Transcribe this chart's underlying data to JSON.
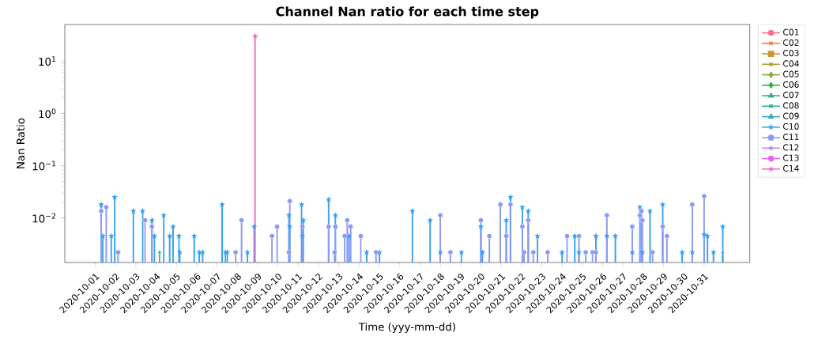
{
  "chart_data": {
    "type": "lollipop",
    "title": "Channel Nan ratio for each time step",
    "xlabel": "Time (yyy-mm-dd)",
    "ylabel": "Nan Ratio",
    "log": "y",
    "grid": false,
    "legend": "right",
    "xlim": [
      "2020-09-29T12:00",
      "2020-11-02T06:00"
    ],
    "xticks": [
      "2020-10-01",
      "2020-10-02",
      "2020-10-03",
      "2020-10-04",
      "2020-10-05",
      "2020-10-06",
      "2020-10-07",
      "2020-10-08",
      "2020-10-09",
      "2020-10-10",
      "2020-10-11",
      "2020-10-12",
      "2020-10-13",
      "2020-10-14",
      "2020-10-15",
      "2020-10-16",
      "2020-10-17",
      "2020-10-18",
      "2020-10-19",
      "2020-10-20",
      "2020-10-21",
      "2020-10-22",
      "2020-10-23",
      "2020-10-24",
      "2020-10-25",
      "2020-10-26",
      "2020-10-27",
      "2020-10-28",
      "2020-10-29",
      "2020-10-30",
      "2020-10-31"
    ],
    "ylim": [
      0.0014,
      50
    ],
    "yticks": [
      {
        "value": 0.01,
        "label": "10$^{−2}$"
      },
      {
        "value": 0.1,
        "label": "10$^{−1}$"
      },
      {
        "value": 1,
        "label": "10$^{0}$"
      },
      {
        "value": 10,
        "label": "10$^{1}$"
      }
    ],
    "series": [
      {
        "name": "C01",
        "color": "#f77189",
        "marker": "circle"
      },
      {
        "name": "C02",
        "color": "#ee7e39",
        "marker": "cross"
      },
      {
        "name": "C03",
        "color": "#cf9131",
        "marker": "square"
      },
      {
        "name": "C04",
        "color": "#b09a31",
        "marker": "cross"
      },
      {
        "name": "C05",
        "color": "#93a531",
        "marker": "diamond"
      },
      {
        "name": "C06",
        "color": "#33b04a",
        "marker": "diamond"
      },
      {
        "name": "C07",
        "color": "#36ad8b",
        "marker": "triangle"
      },
      {
        "name": "C08",
        "color": "#36aba0",
        "marker": "cross"
      },
      {
        "name": "C09",
        "color": "#38a9b6",
        "marker": "triangle",
        "x": [
          "2020-10-04T04:00",
          "2020-10-31T22:00"
        ],
        "values": [
          0.0022,
          0.0022
        ]
      },
      {
        "name": "C10",
        "color": "#3ba3ec",
        "marker": "star",
        "x": [
          "2020-10-01T07:00",
          "2020-10-01T09:00",
          "2020-10-01T19:00",
          "2020-10-01T23:00",
          "2020-10-02T21:00",
          "2020-10-03T08:00",
          "2020-10-03T19:00",
          "2020-10-03T22:00",
          "2020-10-04T09:00",
          "2020-10-04T16:00",
          "2020-10-04T20:00",
          "2020-10-05T03:00",
          "2020-10-05T04:00",
          "2020-10-05T21:00",
          "2020-10-06T03:00",
          "2020-10-06T07:00",
          "2020-10-07T06:00",
          "2020-10-07T10:00",
          "2020-10-07T12:00",
          "2020-10-08T12:00",
          "2020-10-08T20:00",
          "2020-10-10T13:00",
          "2020-10-10T14:00",
          "2020-10-10T15:00",
          "2020-10-11T04:00",
          "2020-10-11T05:00",
          "2020-10-11T06:00",
          "2020-10-12T12:00",
          "2020-10-12T20:00",
          "2020-10-13T12:00",
          "2020-10-14T09:00",
          "2020-10-15T00:00",
          "2020-10-16T15:00",
          "2020-10-17T12:00",
          "2020-10-18T00:00",
          "2020-10-19T01:00",
          "2020-10-20T00:00",
          "2020-10-20T02:00",
          "2020-10-21T06:00",
          "2020-10-21T11:00",
          "2020-10-22T01:00",
          "2020-10-22T08:00",
          "2020-10-22T19:00",
          "2020-10-24T00:00",
          "2020-10-24T15:00",
          "2020-10-24T20:00",
          "2020-10-25T16:00",
          "2020-10-26T05:00",
          "2020-10-26T15:00",
          "2020-10-27T11:00",
          "2020-10-27T20:00",
          "2020-10-27T23:00",
          "2020-10-28T08:00",
          "2020-10-28T23:00",
          "2020-10-29T22:00",
          "2020-10-30T10:00",
          "2020-10-31T00:00",
          "2020-10-31T04:00",
          "2020-10-31T11:00",
          "2020-10-31T22:00"
        ],
        "values": [
          0.018,
          0.0045,
          0.0045,
          0.025,
          0.0135,
          0.0135,
          0.009,
          0.0045,
          0.0112,
          0.0045,
          0.0068,
          0.0045,
          0.0022,
          0.0045,
          0.0022,
          0.0022,
          0.018,
          0.0022,
          0.0022,
          0.0022,
          0.0068,
          0.0112,
          0.0068,
          null,
          0.018,
          0.0045,
          0.009,
          0.0225,
          0.0112,
          0.0045,
          0.0022,
          0.0022,
          0.0135,
          0.009,
          0.0022,
          0.0022,
          0.0068,
          0.0022,
          0.009,
          0.025,
          0.016,
          0.0135,
          0.0045,
          0.0022,
          0.0045,
          0.0022,
          0.0045,
          0.0045,
          0.0045,
          0.0022,
          0.016,
          0.0022,
          0.0135,
          0.018,
          0.0022,
          0.0022,
          0.0048,
          0.0045,
          0.0022,
          0.0068
        ]
      },
      {
        "name": "C11",
        "color": "#8d9af5",
        "marker": "circle",
        "x": [
          "2020-10-01T07:00",
          "2020-10-01T13:00",
          "2020-10-02T03:00",
          "2020-10-03T11:00",
          "2020-10-03T19:00",
          "2020-10-07T22:00",
          "2020-10-08T05:00",
          "2020-10-09T17:00",
          "2020-10-09T23:00",
          "2020-10-10T13:00",
          "2020-10-10T14:00",
          "2020-10-11T05:00",
          "2020-10-12T12:00",
          "2020-10-12T19:00",
          "2020-10-12T20:00",
          "2020-10-13T07:00",
          "2020-10-13T10:00",
          "2020-10-13T14:00",
          "2020-10-14T02:00",
          "2020-10-14T20:00",
          "2020-10-18T00:00",
          "2020-10-18T12:00",
          "2020-10-20T00:00",
          "2020-10-20T10:00",
          "2020-10-20T23:00",
          "2020-10-21T06:00",
          "2020-10-21T11:00",
          "2020-10-22T01:00",
          "2020-10-22T03:00",
          "2020-10-22T08:00",
          "2020-10-22T14:00",
          "2020-10-23T07:00",
          "2020-10-24T06:00",
          "2020-10-24T20:00",
          "2020-10-25T04:00",
          "2020-10-25T12:00",
          "2020-10-25T16:00",
          "2020-10-26T05:00",
          "2020-10-27T11:00",
          "2020-10-27T20:00",
          "2020-10-27T22:00",
          "2020-10-27T23:00",
          "2020-10-28T11:00",
          "2020-10-28T23:00",
          "2020-10-29T04:00",
          "2020-10-30T10:00",
          "2020-10-31T00:00"
        ],
        "values": [
          0.0135,
          0.016,
          0.0022,
          0.009,
          0.0068,
          0.0022,
          0.009,
          0.0045,
          0.0068,
          0.0022,
          0.021,
          0.0068,
          0.0068,
          0.0022,
          0.0068,
          0.0045,
          0.009,
          0.0068,
          0.0045,
          0.0022,
          0.0112,
          0.0022,
          0.009,
          0.0045,
          0.018,
          0.0045,
          0.018,
          0.0068,
          0.0022,
          0.009,
          0.0022,
          0.0022,
          0.0045,
          0.0045,
          0.0022,
          0.0022,
          0.0022,
          0.0112,
          0.0068,
          0.0112,
          0.0135,
          0.009,
          0.0022,
          0.0068,
          0.0045,
          0.018,
          0.026
        ]
      },
      {
        "name": "C12",
        "color": "#b98cf4",
        "marker": "star"
      },
      {
        "name": "C13",
        "color": "#e866f4",
        "marker": "circle"
      },
      {
        "name": "C14",
        "color": "#f668c2",
        "marker": "star",
        "x": [
          "2020-10-08T21:00"
        ],
        "values": [
          30
        ]
      }
    ]
  }
}
